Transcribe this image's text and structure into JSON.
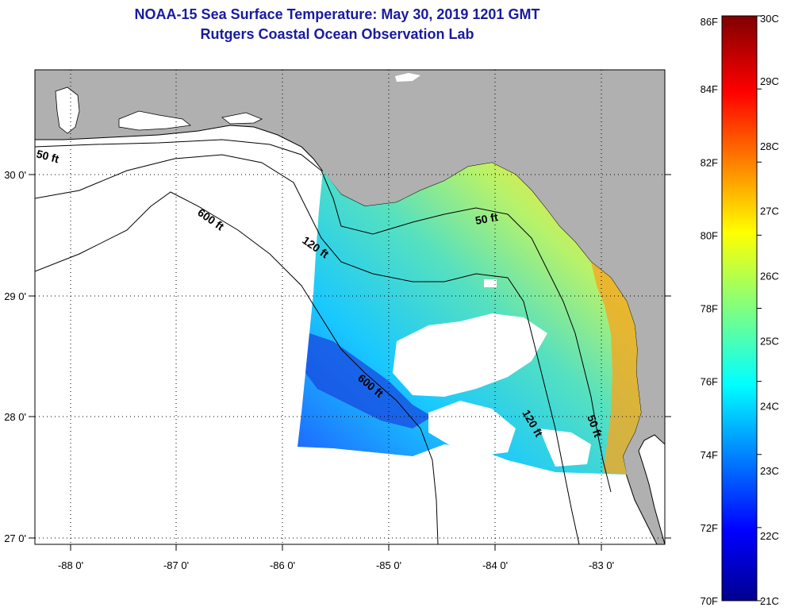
{
  "header": {
    "title": "NOAA-15 Sea Surface Temperature:  May 30, 2019 1201 GMT",
    "subtitle": "Rutgers Coastal Ocean Observation Lab"
  },
  "map": {
    "lon_ticks": [
      "-88 0'",
      "-87 0'",
      "-86 0'",
      "-85 0'",
      "-84 0'",
      "-83 0'"
    ],
    "lat_ticks": [
      "30 0'",
      "29 0'",
      "28 0'",
      "27 0'"
    ],
    "contours": [
      "50 ft",
      "600 ft",
      "120 ft",
      "50 ft",
      "600 ft",
      "120 ft",
      "50 ft"
    ],
    "colors": {
      "land": "#b0b0b0",
      "ocean": "#ffffff",
      "title": "#1a1aa0"
    }
  },
  "colorbar": {
    "fahrenheit": [
      "86F",
      "84F",
      "82F",
      "80F",
      "78F",
      "76F",
      "74F",
      "72F",
      "70F"
    ],
    "celsius": [
      "30C",
      "29C",
      "28C",
      "27C",
      "26C",
      "25C",
      "24C",
      "23C",
      "22C",
      "21C"
    ]
  }
}
